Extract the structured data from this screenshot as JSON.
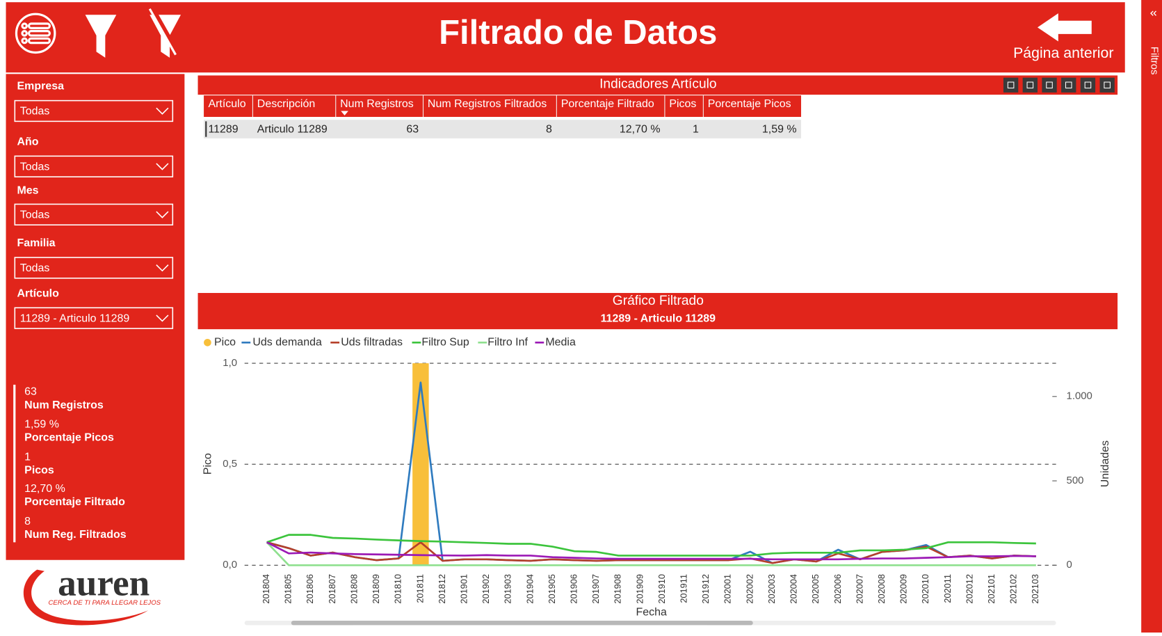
{
  "header": {
    "title": "Filtrado de Datos",
    "back_label": "Página anterior"
  },
  "side_pane": {
    "label": "Filtros"
  },
  "slicers": [
    {
      "label": "Empresa",
      "value": "Todas"
    },
    {
      "label": "Año",
      "value": "Todas"
    },
    {
      "label": "Mes",
      "value": "Todas"
    },
    {
      "label": "Familia",
      "value": "Todas"
    },
    {
      "label": "Artículo",
      "value": "11289 - Articulo 11289"
    }
  ],
  "kpis": [
    {
      "value": "63",
      "label": "Num Registros"
    },
    {
      "value": "1,59 %",
      "label": "Porcentaje Picos"
    },
    {
      "value": "1",
      "label": "Picos"
    },
    {
      "value": "12,70 %",
      "label": "Porcentaje Filtrado"
    },
    {
      "value": "8",
      "label": "Num Reg. Filtrados"
    }
  ],
  "logo": {
    "name": "auren",
    "tagline": "CERCA DE TI PARA LLEGAR LEJOS"
  },
  "table": {
    "title": "Indicadores Artículo",
    "columns": [
      "Artículo",
      "Descripción",
      "Num Registros",
      "Num Registros Filtrados",
      "Porcentaje Filtrado",
      "Picos",
      "Porcentaje Picos"
    ],
    "rows": [
      [
        11289,
        "Articulo 11289",
        63,
        8,
        "12,70 %",
        1,
        "1,59 %"
      ]
    ]
  },
  "chart_data": {
    "type": "combo",
    "title": "Gráfico Filtrado",
    "subtitle": "11289 - Articulo 11289",
    "x_label": "Fecha",
    "y_label": "Pico",
    "y2_label": "Unidades",
    "categories": [
      "201804",
      "201805",
      "201806",
      "201807",
      "201808",
      "201809",
      "201810",
      "201811",
      "201812",
      "201901",
      "201902",
      "201903",
      "201904",
      "201905",
      "201906",
      "201907",
      "201908",
      "201909",
      "201910",
      "201911",
      "201912",
      "202001",
      "202002",
      "202003",
      "202004",
      "202005",
      "202006",
      "202007",
      "202008",
      "202009",
      "202010",
      "202011",
      "202012",
      "202101",
      "202102",
      "202103"
    ],
    "ylim": [
      0,
      1
    ],
    "yticks": [
      {
        "value": 0,
        "label": "0,0"
      },
      {
        "value": 0.5,
        "label": "0,5"
      },
      {
        "value": 1,
        "label": "1,0"
      }
    ],
    "y2lim": [
      0,
      1197
    ],
    "y2ticks": [
      0,
      500,
      {
        "value": 1000,
        "label": "1.000"
      }
    ],
    "grid": true,
    "legend": "top-left",
    "series": [
      {
        "name": "Pico",
        "type": "bar",
        "color": "#f8bf3a",
        "values": [
          0,
          0,
          0,
          0,
          0,
          0,
          0,
          1,
          0,
          0,
          0,
          0,
          0,
          0,
          0,
          0,
          0,
          0,
          0,
          0,
          0,
          0,
          0,
          0,
          0,
          0,
          0,
          0,
          0,
          0,
          0,
          0,
          0,
          0,
          0,
          0
        ]
      },
      {
        "name": "Uds demanda",
        "axis": "y2",
        "color": "#2f7bbf",
        "values": [
          136,
          101,
          57,
          75,
          48,
          30,
          40,
          1083,
          26,
          35,
          35,
          30,
          26,
          35,
          30,
          26,
          30,
          30,
          30,
          30,
          30,
          30,
          80,
          13,
          35,
          22,
          92,
          35,
          79,
          88,
          120,
          48,
          57,
          40,
          57,
          53
        ]
      },
      {
        "name": "Uds filtradas",
        "axis": "y2",
        "color": "#b5402a",
        "values": [
          136,
          101,
          57,
          75,
          48,
          30,
          40,
          136,
          26,
          35,
          35,
          30,
          26,
          35,
          30,
          26,
          30,
          30,
          30,
          30,
          30,
          30,
          40,
          13,
          35,
          22,
          70,
          35,
          79,
          88,
          110,
          48,
          57,
          40,
          57,
          53
        ]
      },
      {
        "name": "Filtro Sup",
        "axis": "y2",
        "color": "#3cc43c",
        "values": [
          136,
          180,
          180,
          162,
          158,
          152,
          147,
          143,
          140,
          136,
          132,
          127,
          127,
          110,
          83,
          79,
          57,
          57,
          57,
          57,
          57,
          57,
          57,
          70,
          74,
          74,
          74,
          88,
          88,
          92,
          101,
          136,
          136,
          136,
          132,
          129
        ]
      },
      {
        "name": "Filtro Inf",
        "axis": "y2",
        "color": "#8fe08f",
        "values": [
          136,
          0,
          0,
          0,
          0,
          0,
          0,
          0,
          0,
          0,
          0,
          0,
          0,
          0,
          0,
          0,
          0,
          0,
          0,
          0,
          0,
          0,
          0,
          0,
          0,
          0,
          0,
          0,
          0,
          0,
          0,
          0,
          0,
          0,
          0,
          0
        ]
      },
      {
        "name": "Media",
        "axis": "y2",
        "color": "#9b19b5",
        "values": [
          136,
          70,
          75,
          70,
          66,
          64,
          62,
          60,
          58,
          57,
          60,
          57,
          57,
          48,
          44,
          40,
          38,
          38,
          38,
          38,
          38,
          38,
          38,
          35,
          35,
          35,
          35,
          38,
          40,
          40,
          44,
          48,
          53,
          53,
          55,
          53
        ]
      }
    ]
  }
}
